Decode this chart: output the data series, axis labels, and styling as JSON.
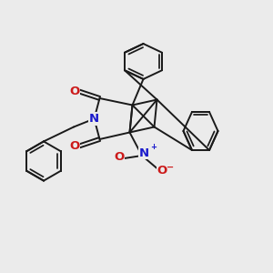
{
  "bg_color": "#ebebeb",
  "bond_color": "#1a1a1a",
  "N_color": "#1a1acc",
  "O_color": "#cc1a1a",
  "bond_lw": 1.4,
  "fig_size": [
    3.0,
    3.0
  ],
  "dpi": 100,
  "xlim": [
    0,
    10
  ],
  "ylim": [
    0,
    10
  ]
}
